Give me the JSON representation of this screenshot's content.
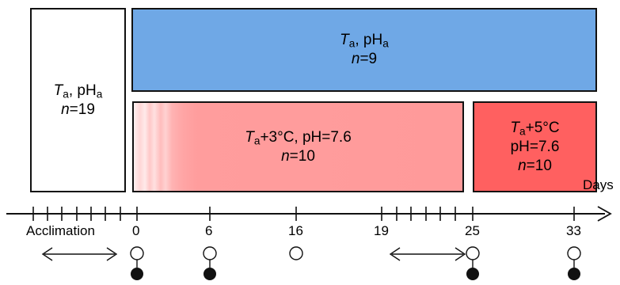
{
  "acclimation_box": {
    "t_symbol": "T",
    "t_sub": "a",
    "ph_text": ", pH",
    "ph_sub": "a",
    "n_symbol": "n",
    "n_value": "=19",
    "fill": "#ffffff"
  },
  "control_box": {
    "t_symbol": "T",
    "t_sub": "a",
    "ph_text": ", pH",
    "ph_sub": "a",
    "n_symbol": "n",
    "n_value": "=9",
    "fill": "#6fa8e6"
  },
  "plus3_box": {
    "t_symbol": "T",
    "t_sub": "a",
    "condition": "+3°C, pH=7.6",
    "n_symbol": "n",
    "n_value": "=10",
    "fill": "#ff9a9a"
  },
  "plus5_box": {
    "t_symbol": "T",
    "t_sub": "a",
    "condition": "+5°C",
    "ph": "pH=7.6",
    "n_symbol": "n",
    "n_value": "=10",
    "fill": "#ff6060"
  },
  "timeline": {
    "axis_label": "Days",
    "acclimation_label": "Acclimation",
    "day_labels": [
      {
        "day": "0",
        "open_circle": true,
        "filled_circle": true
      },
      {
        "day": "6",
        "open_circle": true,
        "filled_circle": true
      },
      {
        "day": "16",
        "open_circle": true,
        "filled_circle": false
      },
      {
        "day": "19",
        "open_circle": false,
        "filled_circle": false
      },
      {
        "day": "25",
        "open_circle": true,
        "filled_circle": true
      },
      {
        "day": "33",
        "open_circle": true,
        "filled_circle": true
      }
    ]
  }
}
